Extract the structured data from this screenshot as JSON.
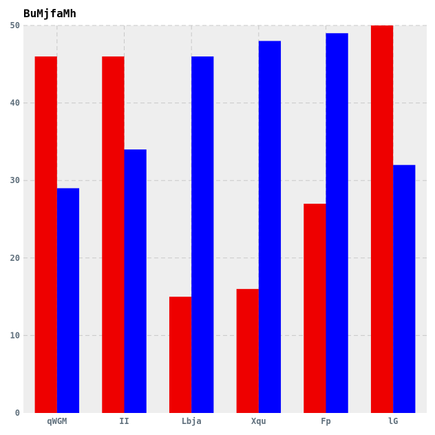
{
  "chart_data": {
    "type": "bar",
    "title": "BuMjfaMh",
    "xlabel": "",
    "ylabel": "",
    "categories": [
      "qWGM",
      "II",
      "Lbja",
      "Xqu",
      "Fp",
      "lG"
    ],
    "series": [
      {
        "color": "#ee0000",
        "values": [
          46,
          46,
          15,
          16,
          27,
          50
        ]
      },
      {
        "color": "#0000ff",
        "values": [
          29,
          34,
          46,
          48,
          49,
          32
        ]
      }
    ],
    "ylim": [
      0,
      50
    ],
    "yticks": [
      0,
      10,
      20,
      30,
      40,
      50
    ],
    "grid": true,
    "plot_background": "#eeeeee"
  }
}
